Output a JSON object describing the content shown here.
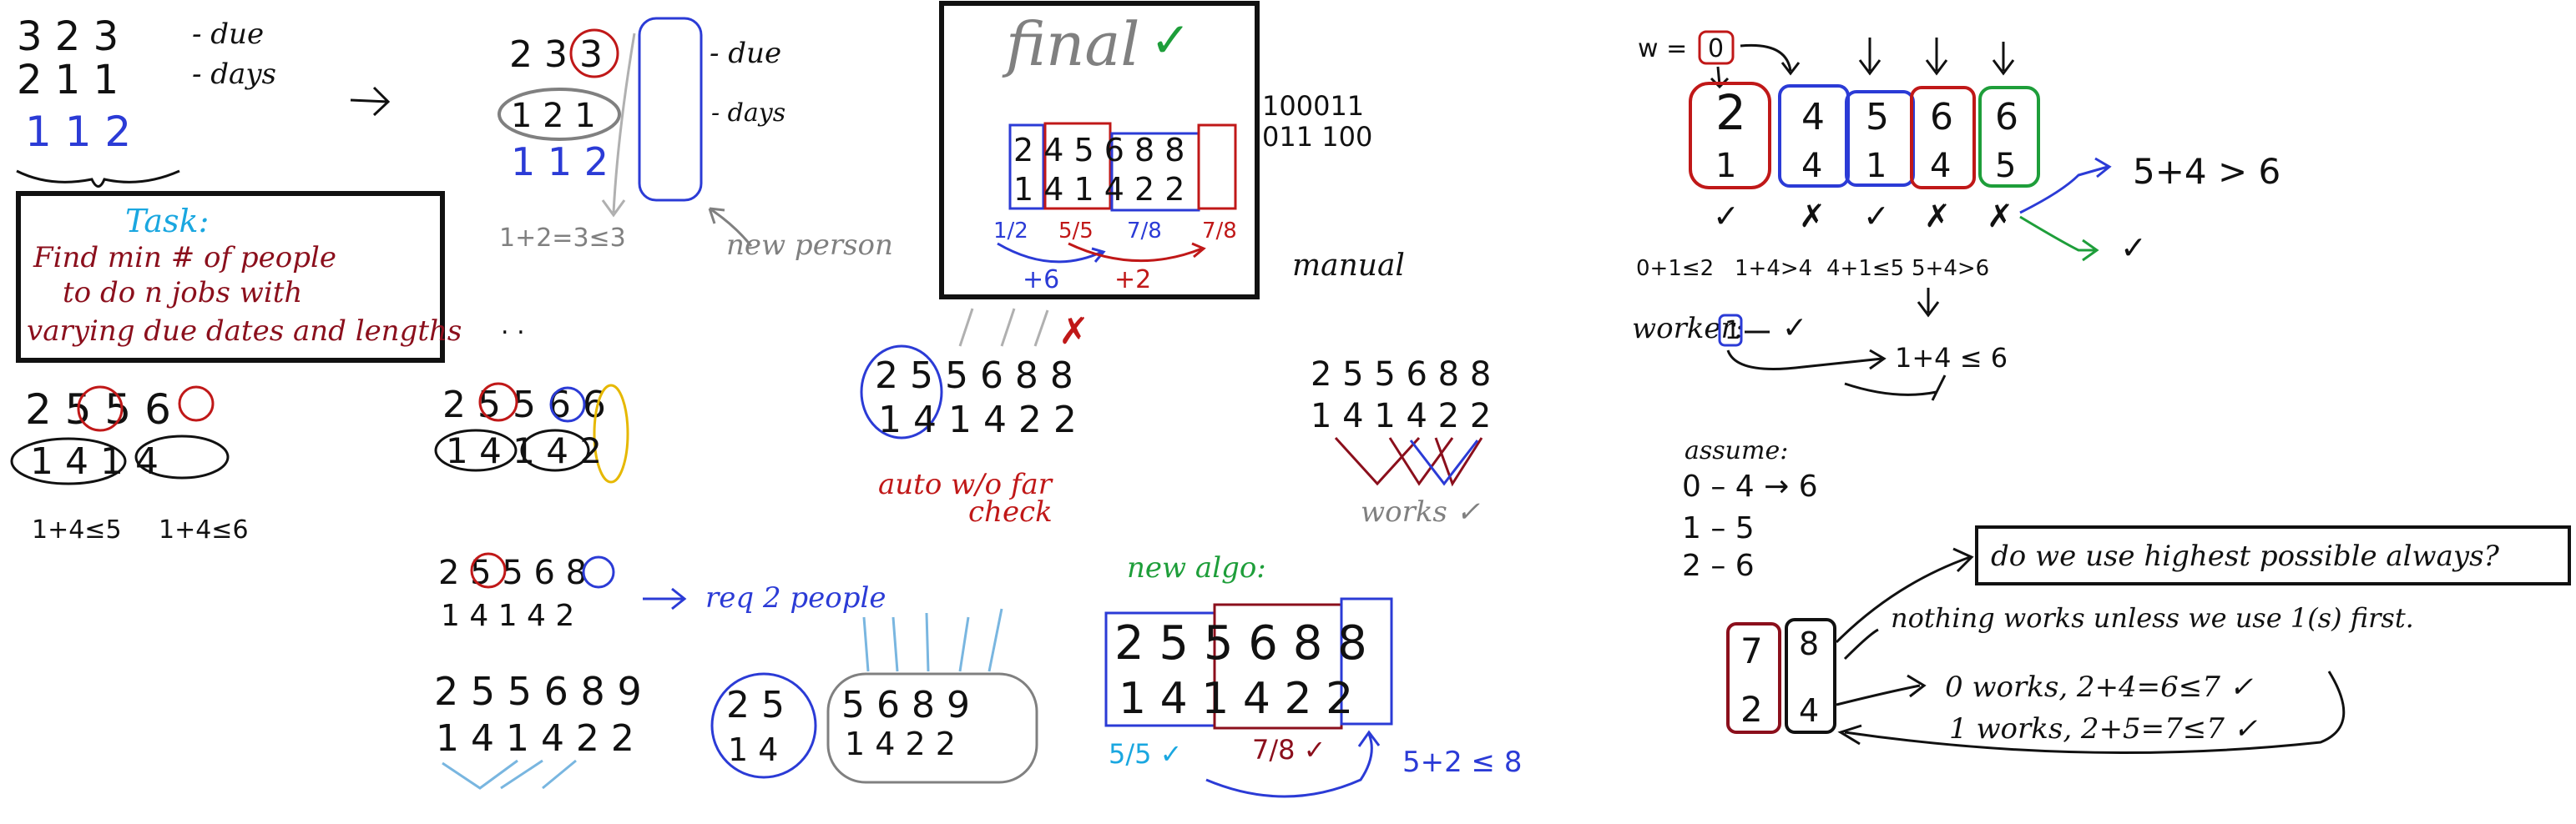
{
  "colors": {
    "ink": "#111111",
    "blue": "#2b3bd6",
    "red": "#c01818",
    "maroon": "#8b0f1c",
    "cyan": "#1aa7e0",
    "green": "#1e9e3a",
    "gray": "#808080",
    "yellow": "#e6b800",
    "lightblue": "#79b6e0"
  },
  "left": {
    "due_row": "3  2  3",
    "due_label": "- due",
    "days_row": "2  1  1",
    "days_label": "- days",
    "slack_row": "1  1  2",
    "task_title": "Task:",
    "task_line1": "Find min # of people",
    "task_line2": "to do n jobs with",
    "task_line3": "varying due dates and lengths",
    "ex_due": "2  5  5  6",
    "ex_days": "1  4    1  4",
    "ex_check_a": "1+4≤5",
    "ex_check_b": "1+4≤6"
  },
  "mid": {
    "top_due": "2  3  3",
    "top_due_label": "- due",
    "top_days": "1  2    1",
    "top_days_label": "- days",
    "top_slack": "1  1    2",
    "top_check": "1+2=3≤3",
    "new_person": "new person",
    "dots": ".        .",
    "seq2_due": "2 5 5 6 6",
    "seq2_days": "1 4 1 4 2",
    "seq3_due": "2 5 5 6 8",
    "seq3_days": "1 4 1 4 2",
    "req_two": "req 2 people",
    "seq4_due": "2 5 5 6 8 9",
    "seq4_days": "1 4 1 4 2 2",
    "grp_a_due": "2 5",
    "grp_a_days": "1 4",
    "grp_b_due": "5 6 8 9",
    "grp_b_days": "1 4 2 2"
  },
  "final": {
    "title": "final",
    "check": "✓",
    "due": "2 4 5 6 8 8",
    "days": "1 4 1 4 2 2",
    "ratios": [
      "1/2",
      "5/5",
      "7/8",
      "7/8"
    ],
    "plus6": "+6",
    "plus2": "+2",
    "binary1": "100011",
    "binary2": "011 100",
    "manual": "manual"
  },
  "center": {
    "seq_due": "2 5 5 6 8 8",
    "seq_days": "1 4 1 4 2 2",
    "auto": "auto w/o far",
    "check": "check",
    "cross": "✗",
    "seq2_due": "2 5 5 6 8 8",
    "seq2_days": "1 4 1 4 2 2",
    "works": "works ✓",
    "new_algo": "new algo:",
    "algo_due": "2 5 5 6 8 8",
    "algo_days": "1 4 1 4 2 2",
    "ratio_a": "5/5 ✓",
    "ratio_b": "7/8 ✓",
    "sum": "5+2 ≤ 8"
  },
  "right": {
    "w_label": "w =",
    "w_val": "0",
    "col_due": [
      "2",
      "4",
      "5",
      "6",
      "6"
    ],
    "col_days": [
      "1",
      "4",
      "1",
      "4",
      "5"
    ],
    "marks": [
      "✓",
      "✗",
      "✓",
      "✗",
      "✗"
    ],
    "checks": [
      "0+1≤2",
      "1+4>4",
      "4+1≤5",
      "5+4>6"
    ],
    "branch_top": "5+4 > 6",
    "branch_bot": "✓",
    "worker_label": "worker:",
    "worker_val": "1",
    "worker_check": "✓",
    "worker_sum": "1+4 ≤ 6",
    "assume": "assume:",
    "assume_0": "0 – 4 → 6",
    "assume_1": "1 – 5",
    "assume_2": "2 – 6",
    "question": "do we use highest possible always?",
    "nothing": "nothing works unless we use 1(s) first.",
    "zero_works": "0 works, 2+4=6≤7 ✓",
    "one_works": "1 works, 2+5=7≤7 ✓",
    "pair_top": [
      "7",
      "8"
    ],
    "pair_bot": [
      "2",
      "4"
    ]
  }
}
